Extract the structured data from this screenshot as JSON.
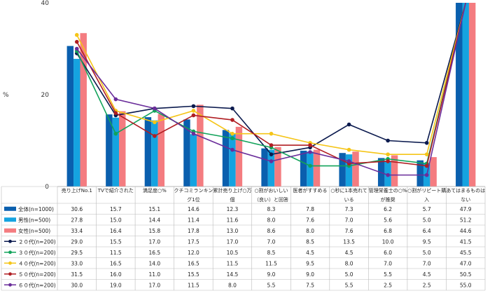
{
  "chart_data": {
    "type": "bar",
    "ylabel": "%",
    "ylim": [
      0,
      40
    ],
    "yticks": [
      0,
      20,
      40
    ],
    "categories": [
      [
        "売り上げNo.1"
      ],
      [
        "TVで紹介された"
      ],
      [
        "満足度○%"
      ],
      [
        "クチコミランキン",
        "グ1位"
      ],
      [
        "累計売り上げ○万",
        "個"
      ],
      [
        "○割がおいしい",
        "（良い）と回答"
      ],
      [
        "医者がすすめる"
      ],
      [
        "○秒に1本売れて",
        "いる"
      ],
      [
        "管理栄養士の○%",
        "が推奨"
      ],
      [
        "○割がリピート購",
        "入"
      ],
      [
        "あてはまるものは",
        "ない"
      ]
    ],
    "bar_series": [
      {
        "name": "全体(n=1000)",
        "color": "#0a5fae",
        "values": [
          30.6,
          15.7,
          15.1,
          14.6,
          12.3,
          8.3,
          7.8,
          7.3,
          6.2,
          5.7,
          47.9
        ]
      },
      {
        "name": "男性(n=500)",
        "color": "#15a3e0",
        "values": [
          27.8,
          15.0,
          14.4,
          11.4,
          11.6,
          8.0,
          7.6,
          7.0,
          5.6,
          5.0,
          51.2
        ]
      },
      {
        "name": "女性(n=500)",
        "color": "#f47c80",
        "values": [
          33.4,
          16.4,
          15.8,
          17.8,
          13.0,
          8.6,
          8.0,
          7.6,
          6.8,
          6.4,
          44.6
        ]
      }
    ],
    "line_series": [
      {
        "name": "２０代(n=200)",
        "color": "#0b1a4e",
        "values": [
          29.0,
          15.5,
          17.0,
          17.5,
          17.0,
          7.0,
          8.5,
          13.5,
          10.0,
          9.5,
          41.5
        ]
      },
      {
        "name": "３０代(n=200)",
        "color": "#12a35a",
        "values": [
          29.5,
          11.5,
          16.5,
          12.0,
          10.5,
          8.5,
          4.5,
          4.5,
          6.0,
          5.0,
          45.5
        ]
      },
      {
        "name": "４０代(n=200)",
        "color": "#f5c518",
        "values": [
          33.0,
          16.5,
          14.0,
          16.5,
          11.5,
          11.5,
          9.5,
          8.0,
          7.0,
          7.0,
          47.0
        ]
      },
      {
        "name": "５０代(n=200)",
        "color": "#b01e23",
        "values": [
          31.5,
          16.0,
          11.0,
          15.5,
          14.5,
          9.0,
          9.0,
          5.0,
          5.5,
          4.5,
          50.5
        ]
      },
      {
        "name": "６０代(n=200)",
        "color": "#6a2d9a",
        "values": [
          30.0,
          19.0,
          17.0,
          11.5,
          8.0,
          5.5,
          7.5,
          5.5,
          2.5,
          2.5,
          55.0
        ]
      }
    ]
  }
}
